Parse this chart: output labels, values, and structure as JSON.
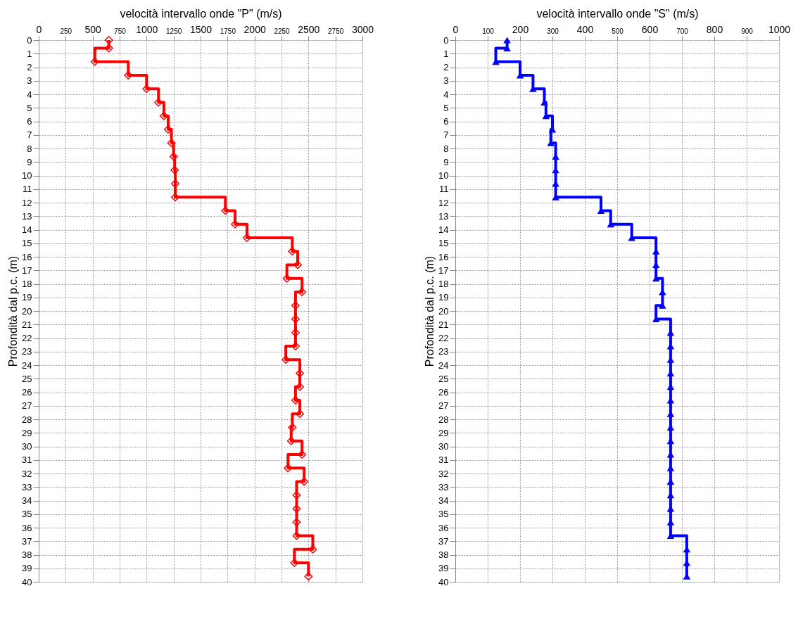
{
  "chart_data": [
    {
      "type": "step",
      "orientation": "horizontal",
      "xlabel": "velocità intervallo onde \"P\" (m/s)",
      "ylabel": "Profondità dal p.c.  (m)",
      "x": [
        0,
        0.6,
        1.6,
        2.6,
        3.6,
        4.6,
        5.6,
        6.6,
        7.6,
        8.6,
        9.6,
        10.6,
        11.6,
        12.6,
        13.6,
        14.6,
        15.6,
        16.6,
        17.6,
        18.6,
        19.6,
        20.6,
        21.6,
        22.6,
        23.6,
        24.6,
        25.6,
        26.6,
        27.6,
        28.6,
        29.6,
        30.6,
        31.6,
        32.6,
        33.6,
        34.6,
        35.6,
        36.6,
        37.6,
        38.6,
        39.6
      ],
      "series": [
        {
          "color": "#ff0000",
          "values": [
            650,
            650,
            520,
            830,
            1000,
            1110,
            1160,
            1200,
            1230,
            1250,
            1260,
            1265,
            1265,
            1730,
            1820,
            1930,
            2350,
            2400,
            2300,
            2440,
            2380,
            2380,
            2380,
            2380,
            2290,
            2420,
            2420,
            2380,
            2420,
            2350,
            2340,
            2440,
            2310,
            2460,
            2390,
            2390,
            2390,
            2390,
            2540,
            2370,
            2500
          ]
        }
      ],
      "xlim": [
        0,
        3000
      ],
      "xticks": [
        0,
        250,
        500,
        750,
        1000,
        1250,
        1500,
        1750,
        2000,
        2250,
        2500,
        2750,
        3000
      ],
      "ylim": [
        40,
        0
      ],
      "yticks": [
        0,
        1,
        2,
        3,
        4,
        5,
        6,
        7,
        8,
        9,
        10,
        11,
        12,
        13,
        14,
        15,
        16,
        17,
        18,
        19,
        20,
        21,
        22,
        23,
        24,
        25,
        26,
        27,
        28,
        29,
        30,
        31,
        32,
        33,
        34,
        35,
        36,
        37,
        38,
        39,
        40
      ],
      "grid": true,
      "marker": "diamond",
      "line_style": "solid"
    },
    {
      "type": "step",
      "orientation": "horizontal",
      "xlabel": "velocità intervallo onde \"S\" (m/s)",
      "ylabel": "Profondità dal p.c.  (m)",
      "x": [
        0,
        0.6,
        1.6,
        2.6,
        3.6,
        4.6,
        5.6,
        6.6,
        7.6,
        8.6,
        9.6,
        10.6,
        11.6,
        12.6,
        13.6,
        14.6,
        15.6,
        16.6,
        17.6,
        18.6,
        19.6,
        20.6,
        21.6,
        22.6,
        23.6,
        24.6,
        25.6,
        26.6,
        27.6,
        28.6,
        29.6,
        30.6,
        31.6,
        32.6,
        33.6,
        34.6,
        35.6,
        36.6,
        37.6,
        38.6,
        39.6
      ],
      "series": [
        {
          "color": "#0000ff",
          "values": [
            160,
            160,
            125,
            200,
            240,
            275,
            280,
            300,
            295,
            310,
            310,
            310,
            310,
            450,
            480,
            545,
            620,
            620,
            620,
            640,
            640,
            620,
            665,
            665,
            665,
            665,
            665,
            665,
            665,
            665,
            665,
            665,
            665,
            665,
            665,
            665,
            665,
            665,
            715,
            715,
            715
          ]
        }
      ],
      "xlim": [
        0,
        1000
      ],
      "xticks": [
        0,
        100,
        200,
        300,
        400,
        500,
        600,
        700,
        800,
        900,
        1000
      ],
      "ylim": [
        40,
        0
      ],
      "yticks": [
        0,
        1,
        2,
        3,
        4,
        5,
        6,
        7,
        8,
        9,
        10,
        11,
        12,
        13,
        14,
        15,
        16,
        17,
        18,
        19,
        20,
        21,
        22,
        23,
        24,
        25,
        26,
        27,
        28,
        29,
        30,
        31,
        32,
        33,
        34,
        35,
        36,
        37,
        38,
        39,
        40
      ],
      "grid": true,
      "marker": "triangle",
      "line_style": "solid"
    }
  ]
}
